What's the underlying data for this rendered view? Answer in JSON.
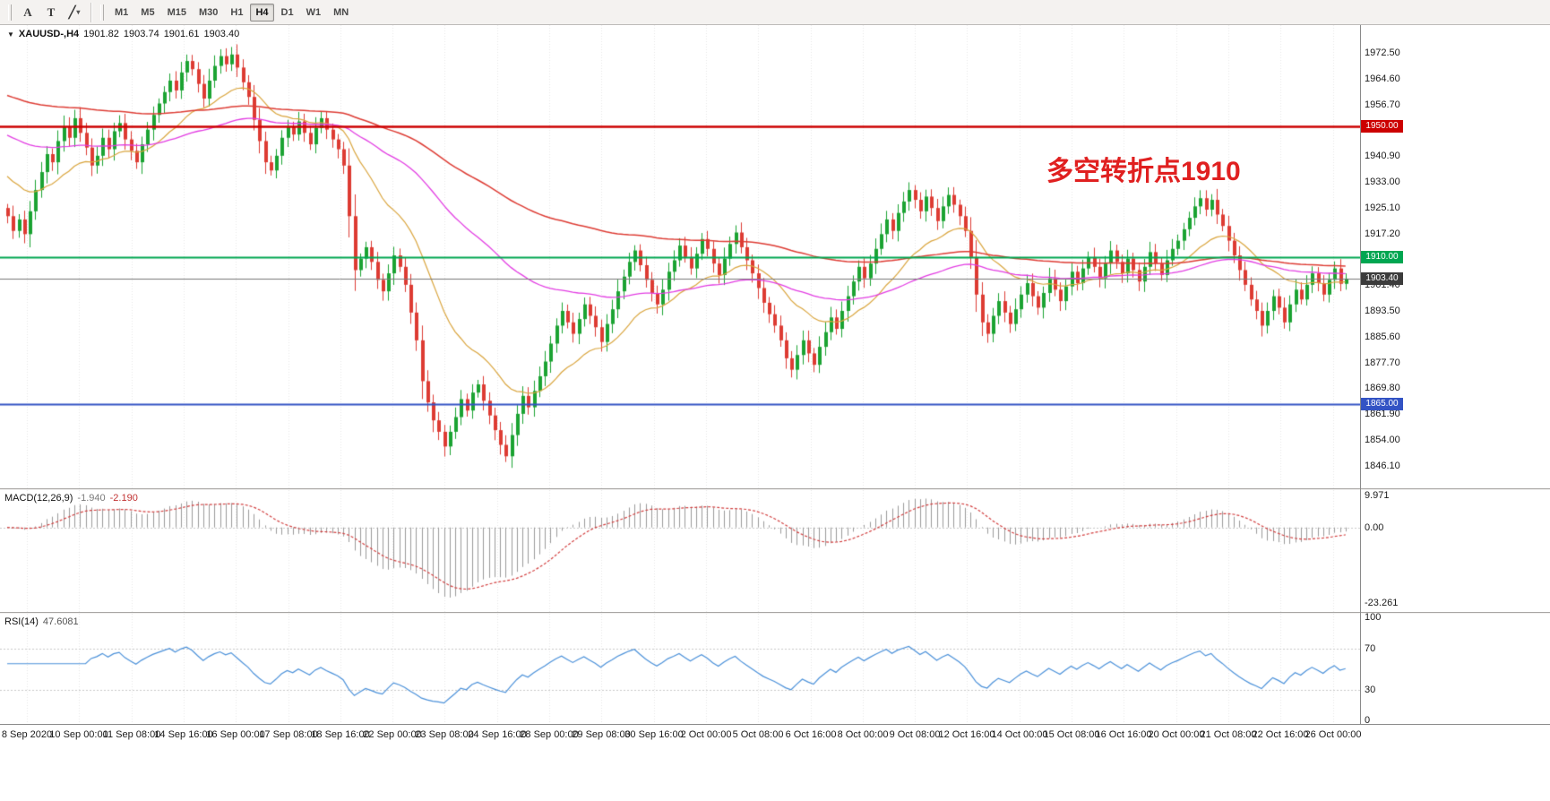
{
  "window": {
    "bg": "#ffffff"
  },
  "toolbar": {
    "tools": [
      {
        "name": "text-tool",
        "label": "A",
        "has_dropdown": false
      },
      {
        "name": "text-label-tool",
        "label": "T",
        "has_dropdown": false
      },
      {
        "name": "shapes-tool",
        "label": "╱",
        "has_dropdown": true
      }
    ],
    "dropdown_caret": "▾",
    "timeframes": [
      "M1",
      "M5",
      "M15",
      "M30",
      "H1",
      "H4",
      "D1",
      "W1",
      "MN"
    ],
    "active_timeframe": "H4"
  },
  "header": {
    "collapse_icon": "▼",
    "symbol": "XAUUSD-,H4",
    "open": "1901.82",
    "high": "1903.74",
    "low": "1901.61",
    "close": "1903.40"
  },
  "annotation": {
    "text": "多空转折点1910",
    "color": "#e02020"
  },
  "price_axis": {
    "ticks": [
      "1972.50",
      "1964.60",
      "1956.70",
      "1948.80",
      "1940.90",
      "1933.00",
      "1925.10",
      "1917.20",
      "1909.30",
      "1901.40",
      "1893.50",
      "1885.60",
      "1877.70",
      "1869.80",
      "1861.90",
      "1854.00",
      "1846.10"
    ]
  },
  "hlines": [
    {
      "price": 1950.0,
      "label": "1950.00",
      "color": "#cc0000",
      "width": 2.5
    },
    {
      "price": 1910.0,
      "label": "1910.00",
      "color": "#00a651",
      "width": 2
    },
    {
      "price": 1865.0,
      "label": "1865.00",
      "color": "#3353c4",
      "width": 2
    }
  ],
  "price_line": {
    "price": 1903.4,
    "label": "1903.40",
    "line_color": "#777777",
    "badge_color": "#3c3c3c"
  },
  "chart_data": {
    "type": "candlestick",
    "symbol": "XAUUSD",
    "timeframe": "H4",
    "up_color": "#1ba332",
    "down_color": "#dd3b33",
    "ylim": [
      1839.2,
      1981.0
    ],
    "first_open": 1925.0,
    "closes": [
      1922.5,
      1918.0,
      1921.5,
      1917.0,
      1924.0,
      1930.5,
      1936.0,
      1941.5,
      1939.0,
      1945.5,
      1950.0,
      1946.5,
      1952.5,
      1948.0,
      1943.5,
      1938.0,
      1941.0,
      1946.5,
      1943.0,
      1948.5,
      1951.0,
      1946.0,
      1942.5,
      1939.0,
      1944.5,
      1949.0,
      1953.5,
      1957.0,
      1960.5,
      1964.0,
      1961.0,
      1966.5,
      1970.0,
      1967.5,
      1963.0,
      1958.5,
      1964.0,
      1968.5,
      1971.5,
      1969.0,
      1972.0,
      1968.0,
      1963.5,
      1959.0,
      1952.0,
      1945.5,
      1939.0,
      1936.5,
      1941.0,
      1946.5,
      1950.0,
      1947.5,
      1951.5,
      1948.0,
      1944.5,
      1949.5,
      1952.5,
      1949.0,
      1946.0,
      1943.0,
      1938.0,
      1922.5,
      1906.0,
      1909.5,
      1913.0,
      1908.5,
      1903.0,
      1899.5,
      1905.0,
      1910.5,
      1907.0,
      1901.5,
      1893.0,
      1884.5,
      1872.0,
      1865.5,
      1860.0,
      1856.5,
      1852.0,
      1856.5,
      1861.0,
      1866.5,
      1863.0,
      1868.5,
      1871.0,
      1866.0,
      1861.5,
      1857.0,
      1852.5,
      1849.0,
      1855.5,
      1862.0,
      1867.5,
      1864.0,
      1869.0,
      1873.5,
      1878.0,
      1883.5,
      1889.0,
      1893.5,
      1890.0,
      1886.5,
      1891.0,
      1895.5,
      1892.0,
      1888.5,
      1884.0,
      1889.5,
      1894.0,
      1899.5,
      1904.0,
      1908.5,
      1912.0,
      1907.5,
      1903.0,
      1899.0,
      1895.5,
      1900.0,
      1905.5,
      1909.0,
      1913.5,
      1910.0,
      1906.5,
      1911.0,
      1915.5,
      1912.5,
      1908.0,
      1904.5,
      1909.5,
      1914.0,
      1917.5,
      1913.0,
      1909.0,
      1905.0,
      1900.5,
      1896.0,
      1892.5,
      1889.0,
      1884.5,
      1879.0,
      1875.5,
      1880.0,
      1884.5,
      1880.5,
      1877.0,
      1882.5,
      1887.0,
      1891.5,
      1888.0,
      1893.5,
      1898.0,
      1902.5,
      1907.0,
      1903.5,
      1908.0,
      1912.5,
      1917.0,
      1921.5,
      1918.0,
      1923.5,
      1927.0,
      1930.5,
      1927.5,
      1924.0,
      1928.5,
      1925.0,
      1921.0,
      1925.5,
      1929.0,
      1926.0,
      1922.5,
      1918.0,
      1910.0,
      1898.5,
      1890.0,
      1886.5,
      1892.0,
      1896.5,
      1893.0,
      1889.5,
      1894.0,
      1898.5,
      1902.0,
      1898.0,
      1894.5,
      1899.0,
      1903.5,
      1900.0,
      1896.5,
      1901.0,
      1905.5,
      1902.0,
      1906.5,
      1910.0,
      1907.0,
      1903.5,
      1908.0,
      1912.0,
      1908.5,
      1905.0,
      1909.5,
      1906.0,
      1902.5,
      1907.0,
      1911.5,
      1908.0,
      1904.5,
      1909.0,
      1912.5,
      1915.0,
      1918.5,
      1922.0,
      1925.5,
      1928.0,
      1924.5,
      1927.5,
      1923.0,
      1919.5,
      1915.0,
      1910.5,
      1906.0,
      1901.5,
      1897.0,
      1893.5,
      1889.0,
      1893.5,
      1898.0,
      1894.5,
      1890.0,
      1895.5,
      1900.0,
      1897.0,
      1901.5,
      1905.0,
      1902.0,
      1898.5,
      1903.0,
      1906.5,
      1901.8,
      1903.4
    ],
    "moving_averages": [
      {
        "name": "ma-fast",
        "period": 20,
        "seed": 1936,
        "color": "#d9a43c",
        "width": 1.2
      },
      {
        "name": "ma-mid",
        "period": 70,
        "seed": 1948,
        "color": "#e23ce2",
        "width": 1.3
      },
      {
        "name": "ma-slow",
        "period": 140,
        "seed": 1960,
        "color": "#dd3b33",
        "width": 1.5
      }
    ]
  },
  "macd": {
    "label": "MACD(12,26,9)",
    "value_main": "-1.940",
    "value_signal": "-2.190",
    "fast": 12,
    "slow": 26,
    "signal": 9,
    "ticks": [
      "9.971",
      "0.00",
      "-23.261"
    ],
    "tick_values": [
      9.971,
      0,
      -23.261
    ],
    "hist_color": "#9a9a9a",
    "signal_color": "#d23f3f"
  },
  "rsi": {
    "label": "RSI(14)",
    "value": "47.6081",
    "period": 14,
    "ticks": [
      "100",
      "70",
      "30",
      "0"
    ],
    "tick_values": [
      100,
      70,
      30,
      0
    ],
    "levels": [
      70,
      30
    ],
    "color": "#4a90d9"
  },
  "time_axis": {
    "labels": [
      "8 Sep 2020",
      "10 Sep 00:00",
      "11 Sep 08:00",
      "14 Sep 16:00",
      "16 Sep 00:00",
      "17 Sep 08:00",
      "18 Sep 16:00",
      "22 Sep 00:00",
      "23 Sep 08:00",
      "24 Sep 16:00",
      "28 Sep 00:00",
      "29 Sep 08:00",
      "30 Sep 16:00",
      "2 Oct 00:00",
      "5 Oct 08:00",
      "6 Oct 16:00",
      "8 Oct 00:00",
      "9 Oct 08:00",
      "12 Oct 16:00",
      "14 Oct 00:00",
      "15 Oct 08:00",
      "16 Oct 16:00",
      "20 Oct 00:00",
      "21 Oct 08:00",
      "22 Oct 16:00",
      "26 Oct 00:00"
    ]
  }
}
